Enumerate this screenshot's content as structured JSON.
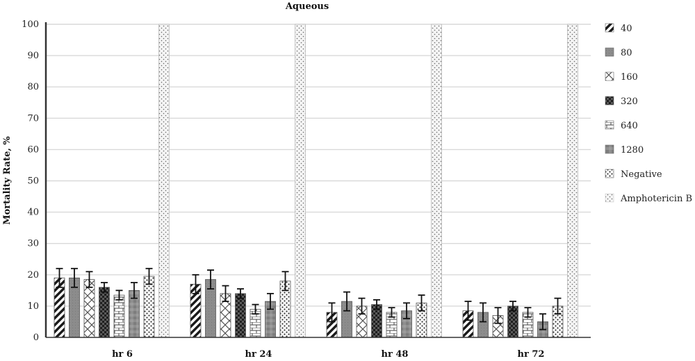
{
  "chart_data": {
    "type": "bar",
    "title": "Aqueous",
    "ylabel": "Mortality Rate, %",
    "xlabel": "",
    "ylim": [
      0,
      100
    ],
    "yticks": [
      0,
      10,
      20,
      30,
      40,
      50,
      60,
      70,
      80,
      90,
      100
    ],
    "grid": true,
    "legend_position": "right",
    "categories": [
      "hr 6",
      "hr 24",
      "hr 48",
      "hr 72"
    ],
    "series": [
      {
        "name": "40",
        "values": [
          19,
          17,
          8,
          8.5
        ],
        "errors": [
          3,
          3,
          3,
          3
        ],
        "pattern": "diag"
      },
      {
        "name": "80",
        "values": [
          19,
          18.5,
          11.5,
          8
        ],
        "errors": [
          3,
          3,
          3,
          3
        ],
        "pattern": "gray"
      },
      {
        "name": "160",
        "values": [
          18.5,
          14,
          10,
          7
        ],
        "errors": [
          2.5,
          2.5,
          2.5,
          2.5
        ],
        "pattern": "lattice"
      },
      {
        "name": "320",
        "values": [
          16,
          14,
          10.5,
          10
        ],
        "errors": [
          1.5,
          1.5,
          1.5,
          1.5
        ],
        "pattern": "checker"
      },
      {
        "name": "640",
        "values": [
          13.5,
          9,
          8,
          8
        ],
        "errors": [
          1.5,
          1.5,
          1.5,
          1.5
        ],
        "pattern": "brick"
      },
      {
        "name": "1280",
        "values": [
          15,
          11.5,
          8.5,
          5
        ],
        "errors": [
          2.5,
          2.5,
          2.5,
          2.5
        ],
        "pattern": "mottled"
      },
      {
        "name": "Negative",
        "values": [
          19.5,
          18,
          11,
          10
        ],
        "errors": [
          2.5,
          3,
          2.5,
          2.5
        ],
        "pattern": "dots"
      },
      {
        "name": "Amphotericin B",
        "values": [
          100,
          100,
          100,
          100
        ],
        "errors": [
          0,
          0,
          0,
          0
        ],
        "pattern": "lightdots"
      }
    ]
  },
  "colors": {
    "grid": "#d9d9d9",
    "axis": "#333333",
    "bar_stroke": "#555555",
    "gray": "#8a8a8a",
    "dark": "#1a1a1a"
  }
}
